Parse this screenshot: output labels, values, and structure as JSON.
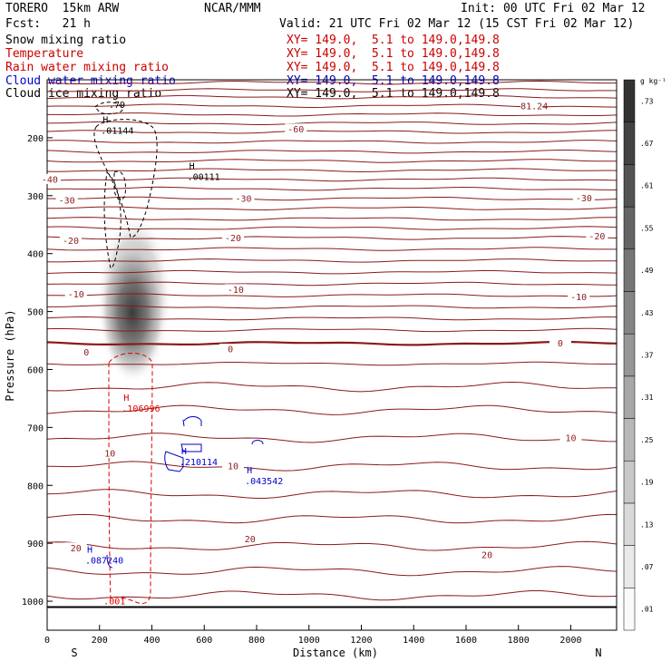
{
  "header": {
    "model": "TORERO  15km ARW",
    "org": "NCAR/MMM",
    "init": "Init: 00 UTC Fri 02 Mar 12",
    "fcst": "Fcst:   21 h",
    "valid": "Valid: 21 UTC Fri 02 Mar 12 (15 CST Fri 02 Mar 12)"
  },
  "fields": [
    {
      "name": "Snow mixing ratio",
      "xy": "",
      "color": "#000000"
    },
    {
      "name": "Temperature",
      "xy": "XY= 149.0,  5.1 to 149.0,149.8",
      "color": "#cc0000"
    },
    {
      "name": "Rain water mixing ratio",
      "xy": "XY= 149.0,  5.1 to 149.0,149.8",
      "color": "#cc0000"
    },
    {
      "name": "Cloud water mixing ratio",
      "xy": "XY= 149.0,  5.1 to 149.0,149.8",
      "color": "#0000cc"
    },
    {
      "name": "Cloud ice mixing ratio",
      "xy": "XY= 149.0,  5.1 to 149.0,149.8",
      "color": "#000000"
    }
  ],
  "snow_xy": "XY= 149.0,  5.1 to 149.0,149.8",
  "chart_data": {
    "type": "cross-section",
    "xlabel": "Distance (km)",
    "ylabel": "Pressure (hPa)",
    "xlim": [
      0,
      2175
    ],
    "ylim": [
      1050,
      100
    ],
    "x_ticks": [
      0,
      200,
      400,
      600,
      800,
      1000,
      1200,
      1400,
      1600,
      1800,
      2000
    ],
    "y_ticks": [
      200,
      300,
      400,
      500,
      600,
      700,
      800,
      900,
      1000
    ],
    "left_end_label": "S",
    "right_end_label": "N",
    "colorbar": {
      "unit": "g kg⁻¹",
      "tick_labels": [
        ".01",
        ".07",
        ".13",
        ".19",
        ".25",
        ".31",
        ".37",
        ".43",
        ".49",
        ".55",
        ".61",
        ".67",
        ".73"
      ]
    },
    "surface_pressure_hpa": 1010,
    "temperature_isotherms_c": [
      {
        "label": "-60",
        "label_x_km": 950,
        "p_hpa": 185
      },
      {
        "label": "-40",
        "label_x_km": 10,
        "p_hpa": 272
      },
      {
        "label": "-30",
        "label_x_km": 75,
        "p_hpa": 308
      },
      {
        "label": "-30",
        "label_x_km": 750,
        "p_hpa": 305
      },
      {
        "label": "-30",
        "label_x_km": 2050,
        "p_hpa": 304
      },
      {
        "label": "-20",
        "label_x_km": 90,
        "p_hpa": 378
      },
      {
        "label": "-20",
        "label_x_km": 710,
        "p_hpa": 373
      },
      {
        "label": "-20",
        "label_x_km": 2100,
        "p_hpa": 370
      },
      {
        "label": "-10",
        "label_x_km": 110,
        "p_hpa": 470
      },
      {
        "label": "-10",
        "label_x_km": 720,
        "p_hpa": 462
      },
      {
        "label": "-10",
        "label_x_km": 2030,
        "p_hpa": 475
      },
      {
        "label": "0",
        "label_x_km": 150,
        "p_hpa": 570
      },
      {
        "label": "0",
        "label_x_km": 700,
        "p_hpa": 565
      },
      {
        "label": "0",
        "label_x_km": 1960,
        "p_hpa": 555
      },
      {
        "label": "10",
        "label_x_km": 240,
        "p_hpa": 745
      },
      {
        "label": "10",
        "label_x_km": 710,
        "p_hpa": 767
      },
      {
        "label": "10",
        "label_x_km": 2000,
        "p_hpa": 718
      },
      {
        "label": "20",
        "label_x_km": 110,
        "p_hpa": 908
      },
      {
        "label": "20",
        "label_x_km": 775,
        "p_hpa": 893
      },
      {
        "label": "20",
        "label_x_km": 1680,
        "p_hpa": 920
      },
      {
        "label": "-81.24",
        "label_x_km": 1850,
        "p_hpa": 145
      }
    ],
    "maxima_labels": [
      {
        "field": "Cloud ice mixing ratio",
        "marker": "H",
        "value": ".01144",
        "x_km": 240,
        "p_hpa": 190
      },
      {
        "field": "Cloud ice mixing ratio",
        "marker": "H",
        "value": ".00111",
        "x_km": 570,
        "p_hpa": 270
      },
      {
        "field": "Rain water mixing ratio",
        "marker": "H",
        "value": ".106996",
        "x_km": 320,
        "p_hpa": 670
      },
      {
        "field": "Cloud water mixing ratio",
        "marker": "H",
        "value": ".210114",
        "x_km": 540,
        "p_hpa": 762
      },
      {
        "field": "Cloud water mixing ratio",
        "marker": "H",
        "value": ".043542",
        "x_km": 790,
        "p_hpa": 795
      },
      {
        "field": "Cloud water mixing ratio",
        "marker": "H",
        "value": ".087240",
        "x_km": 180,
        "p_hpa": 932
      },
      {
        "field": "Cloud ice mixing ratio",
        "marker": "",
        "value": ".79",
        "x_km": 270,
        "p_hpa": 145
      },
      {
        "field": "Rain water mixing ratio",
        "marker": "",
        "value": ".001",
        "x_km": 250,
        "p_hpa": 1002
      }
    ]
  }
}
